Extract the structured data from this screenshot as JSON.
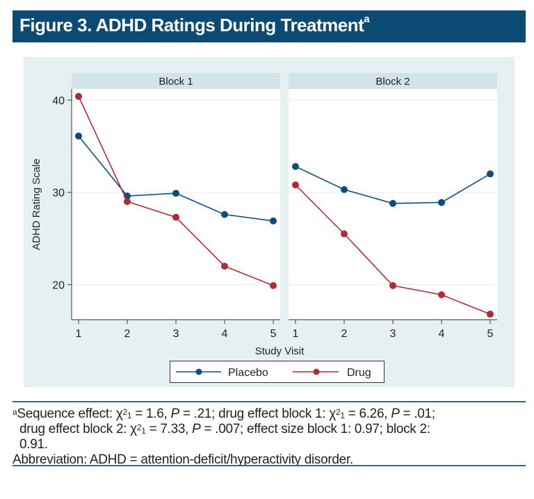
{
  "figure": {
    "title": "Figure 3. ADHD Ratings During Treatment",
    "title_superscript": "a"
  },
  "colors": {
    "title_bg": "#0b4a73",
    "placebo": "#0d4d7b",
    "drug": "#b02a37",
    "panel_header": "#d3e3ea",
    "outer_bg": "#e6f0f3"
  },
  "footnote": {
    "marker": "a",
    "line1_parts": [
      "Sequence effect: χ",
      "2",
      "1",
      " = 1.6, ",
      "P",
      " = .21; drug effect block 1: χ",
      "2",
      "1",
      " = 6.26, ",
      "P",
      " = .01;"
    ],
    "line2_parts": [
      "drug effect block 2: χ",
      "2",
      "1",
      " = 7.33, ",
      "P",
      " = .007; effect size block 1: 0.97; block 2:"
    ],
    "line3": "0.91.",
    "abbreviation": "Abbreviation: ADHD = attention-deficit/hyperactivity disorder."
  },
  "chart_data": {
    "type": "line",
    "title": "ADHD Ratings During Treatment",
    "xlabel": "Study Visit",
    "ylabel": "ADHD Rating Scale",
    "ylim": [
      16.2,
      41.2
    ],
    "yticks": [
      20,
      30,
      40
    ],
    "x": [
      1,
      2,
      3,
      4,
      5
    ],
    "grid": true,
    "legend_position": "bottom-center",
    "legend": [
      "Placebo",
      "Drug"
    ],
    "panels": [
      {
        "title": "Block 1",
        "series": [
          {
            "name": "Placebo",
            "values": [
              36.1,
              29.6,
              29.9,
              27.6,
              26.9
            ]
          },
          {
            "name": "Drug",
            "values": [
              40.4,
              29.0,
              27.3,
              22.0,
              19.9
            ]
          }
        ]
      },
      {
        "title": "Block 2",
        "series": [
          {
            "name": "Placebo",
            "values": [
              32.8,
              30.3,
              28.8,
              28.9,
              32.0
            ]
          },
          {
            "name": "Drug",
            "values": [
              30.8,
              25.5,
              19.9,
              18.9,
              16.8
            ]
          }
        ]
      }
    ]
  }
}
